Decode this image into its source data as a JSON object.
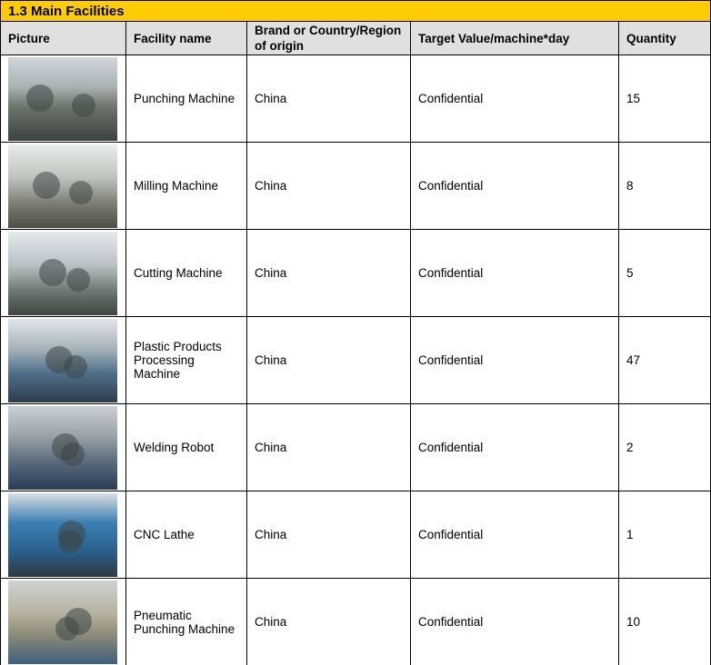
{
  "section_title": "1.3 Main Facilities",
  "columns": [
    "Picture",
    "Facility name",
    "Brand or Country/Region of origin",
    "Target Value/machine*day",
    "Quantity"
  ],
  "rows": [
    {
      "picture": "punching-machine-photo",
      "name": "Punching Machine",
      "origin": "China",
      "target": "Confidential",
      "quantity": "15"
    },
    {
      "picture": "milling-machine-photo",
      "name": "Milling Machine",
      "origin": "China",
      "target": "Confidential",
      "quantity": "8"
    },
    {
      "picture": "cutting-machine-photo",
      "name": "Cutting Machine",
      "origin": "China",
      "target": "Confidential",
      "quantity": "5"
    },
    {
      "picture": "plastic-processing-machine-photo",
      "name": "Plastic Products Processing Machine",
      "origin": "China",
      "target": "Confidential",
      "quantity": "47"
    },
    {
      "picture": "welding-robot-photo",
      "name": "Welding Robot",
      "origin": "China",
      "target": "Confidential",
      "quantity": "2"
    },
    {
      "picture": "cnc-lathe-photo",
      "name": "CNC Lathe",
      "origin": "China",
      "target": "Confidential",
      "quantity": "1"
    },
    {
      "picture": "pneumatic-punching-machine-photo",
      "name": "Pneumatic Punching Machine",
      "origin": "China",
      "target": "Confidential",
      "quantity": "10"
    }
  ],
  "colors": {
    "title_bar": "#ffcc00",
    "header_bg": "#e0e0e0"
  }
}
